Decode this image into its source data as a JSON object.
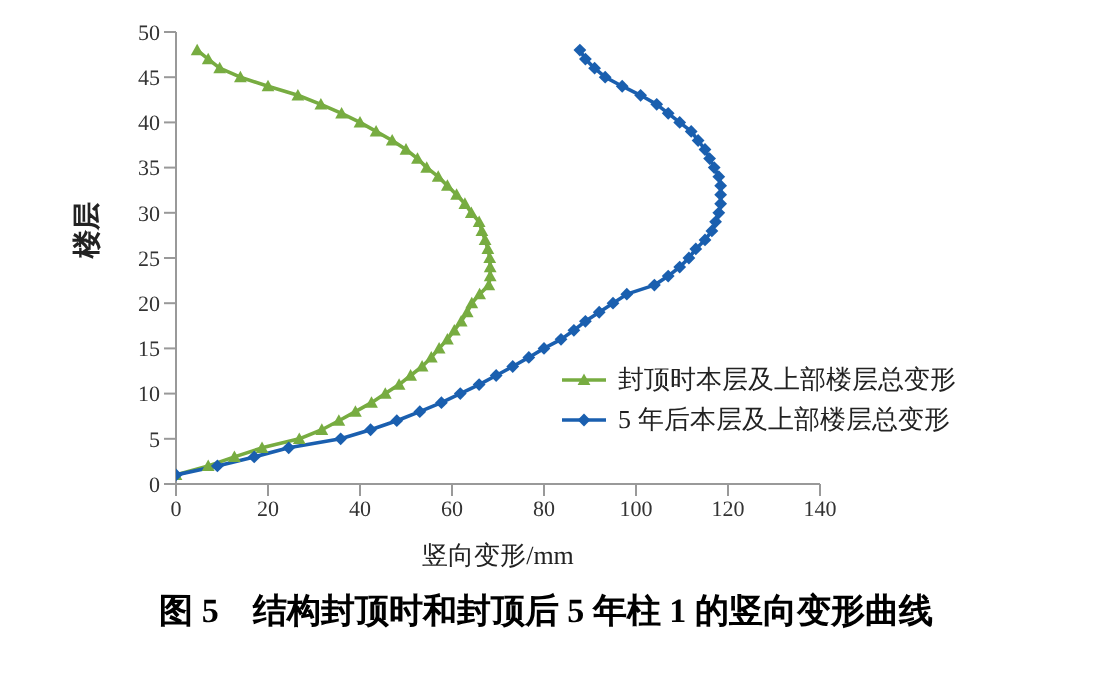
{
  "chart_data": {
    "type": "line",
    "title": "图 5　结构封顶时和封顶后 5 年柱 1 的竖向变形曲线",
    "xlabel": "竖向变形/mm",
    "ylabel": "楼层",
    "xlim": [
      0,
      140
    ],
    "xticks": [
      0,
      20,
      40,
      60,
      80,
      100,
      120,
      140
    ],
    "ylim": [
      0,
      50
    ],
    "yticks": [
      0,
      5,
      10,
      15,
      20,
      25,
      30,
      35,
      40,
      45,
      50
    ],
    "grid": false,
    "legend": "right",
    "line_style": "solid",
    "series": [
      {
        "name": "封顶时本层及上部楼层总变形",
        "color": "#77ac41",
        "marker": "triangle",
        "x": [
          0,
          7,
          12.7,
          18.7,
          26.8,
          31.7,
          35.4,
          39,
          42.5,
          45.5,
          48.5,
          51,
          53.5,
          55.5,
          57.2,
          59,
          60.5,
          62,
          63.3,
          64.3,
          66,
          68,
          68.3,
          68.3,
          68.2,
          67.8,
          67.2,
          66.5,
          65.9,
          64.2,
          62.8,
          61,
          59,
          57,
          54.5,
          52.5,
          50,
          47,
          43.5,
          40,
          36,
          31.5,
          26.5,
          20,
          14,
          9.5,
          7,
          4.6
        ],
        "values": [
          1,
          2,
          3,
          4,
          5,
          6,
          7,
          8,
          9,
          10,
          11,
          12,
          13,
          14,
          15,
          16,
          17,
          18,
          19,
          20,
          21,
          22,
          23,
          24,
          25,
          26,
          27,
          28,
          29,
          30,
          31,
          32,
          33,
          34,
          35,
          36,
          37,
          38,
          39,
          40,
          41,
          42,
          43,
          44,
          45,
          46,
          47,
          48
        ]
      },
      {
        "name": "5 年后本层及上部楼层总变形",
        "color": "#1a5faf",
        "marker": "diamond",
        "x": [
          0,
          9,
          17,
          24.5,
          35.8,
          42.3,
          48,
          53,
          57.7,
          61.8,
          65.9,
          69.6,
          73.2,
          76.7,
          80,
          83.7,
          86.5,
          89,
          92,
          95,
          98,
          104,
          107,
          109.5,
          111.5,
          113,
          115,
          116.5,
          117.3,
          118,
          118.4,
          118.4,
          118.4,
          118,
          117,
          116,
          115,
          113.5,
          112,
          109.5,
          107,
          104.5,
          101,
          97,
          93.3,
          91,
          89,
          87.8
        ],
        "values": [
          1,
          2,
          3,
          4,
          5,
          6,
          7,
          8,
          9,
          10,
          11,
          12,
          13,
          14,
          15,
          16,
          17,
          18,
          19,
          20,
          21,
          22,
          23,
          24,
          25,
          26,
          27,
          28,
          29,
          30,
          31,
          32,
          33,
          34,
          35,
          36,
          37,
          38,
          39,
          40,
          41,
          42,
          43,
          44,
          45,
          46,
          47,
          48
        ]
      }
    ]
  }
}
